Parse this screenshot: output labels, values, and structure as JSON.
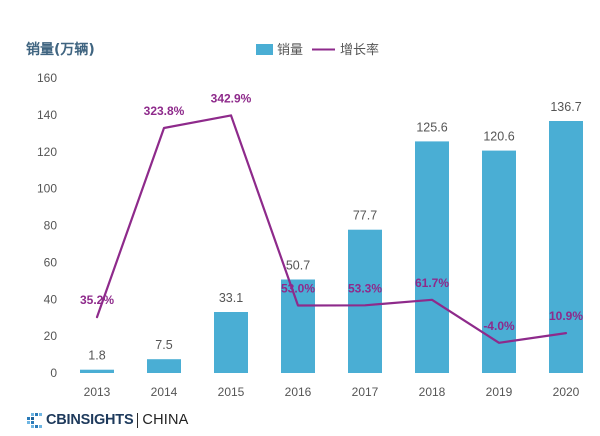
{
  "chart_data": {
    "type": "bar",
    "ylabel": "销量(万辆)",
    "categories": [
      "2013",
      "2014",
      "2015",
      "2016",
      "2017",
      "2018",
      "2019",
      "2020"
    ],
    "ylim": [
      0,
      160
    ],
    "yticks": [
      0,
      20,
      40,
      60,
      80,
      100,
      120,
      140,
      160
    ],
    "y2lim": [
      -50,
      400
    ],
    "y2_axis_visible": false,
    "grid": false,
    "legend_position": "top-center",
    "series": [
      {
        "name": "销量",
        "type": "bar",
        "secondary_axis": false,
        "color": "#4aaed4",
        "values": [
          1.8,
          7.5,
          33.1,
          50.7,
          77.7,
          125.6,
          120.6,
          136.7
        ]
      },
      {
        "name": "增长率",
        "type": "line",
        "secondary_axis": true,
        "color": "#8e2a8b",
        "values": [
          35.2,
          323.8,
          342.9,
          53.0,
          53.3,
          61.7,
          -4.0,
          10.9
        ],
        "labels": [
          "35.2%",
          "323.8%",
          "342.9%",
          "53.0%",
          "53.3%",
          "61.7%",
          "-4.0%",
          "10.9%"
        ]
      }
    ]
  },
  "colors": {
    "axis_title": "#3f6480",
    "tick_text": "#555555",
    "value_label": "#555555",
    "growth_label": "#8e2a8b"
  },
  "logo": {
    "icon": "cbinsights-mark-icon",
    "brand": "CBINSIGHTS",
    "region": "CHINA",
    "brand_color": "#1e3a5c"
  }
}
